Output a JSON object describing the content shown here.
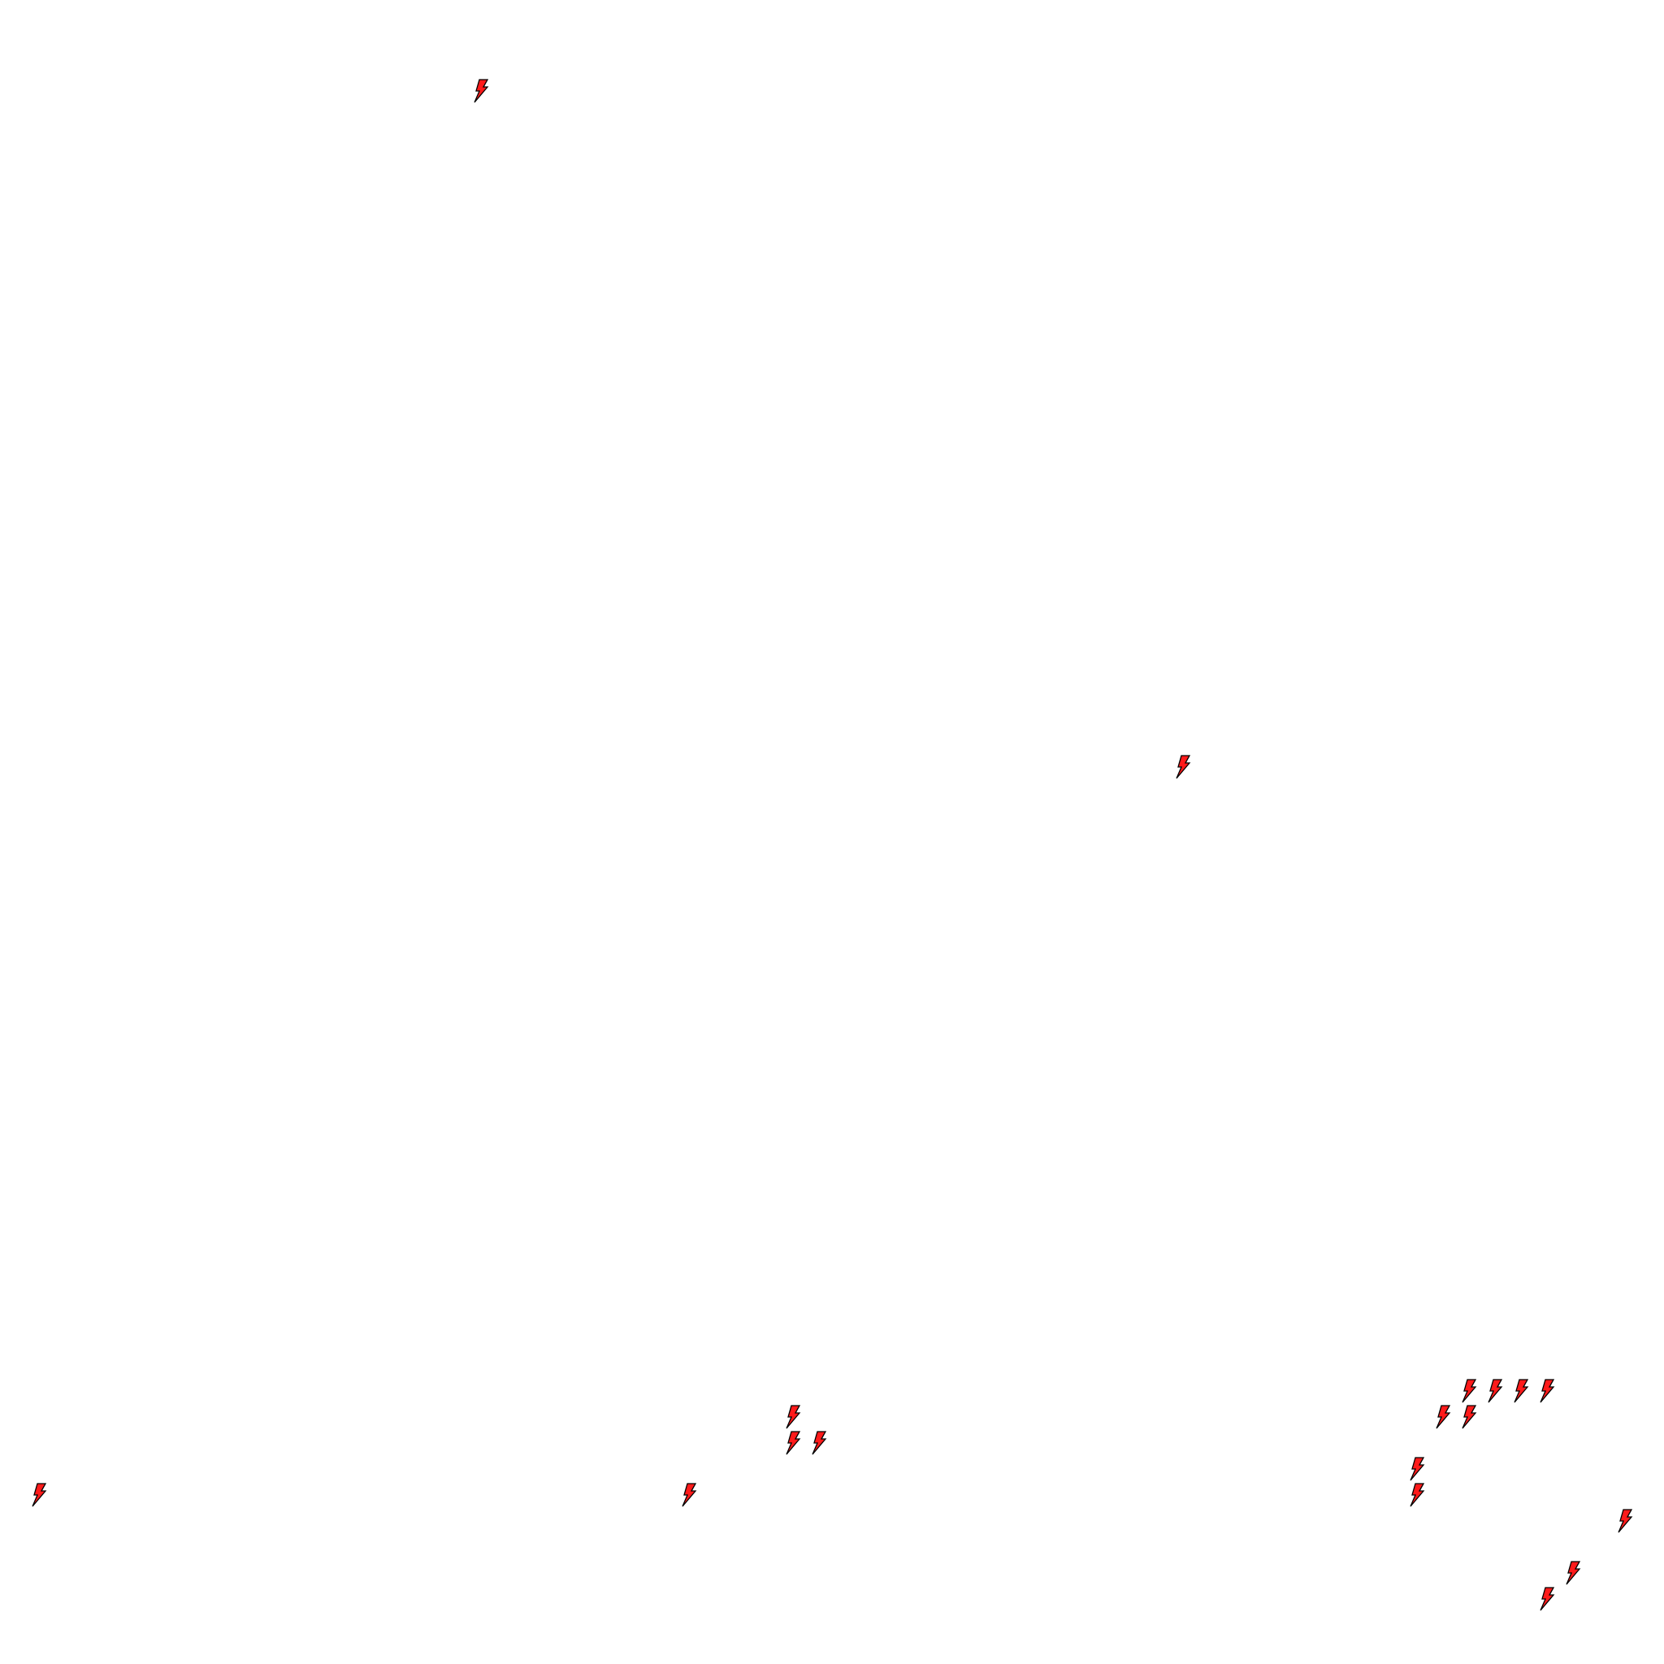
{
  "map": {
    "background": "#ffffff",
    "marker_icon": "lightning-bolt-icon",
    "marker_fill": "#ff1a1a",
    "marker_stroke": "#000000"
  }
}
